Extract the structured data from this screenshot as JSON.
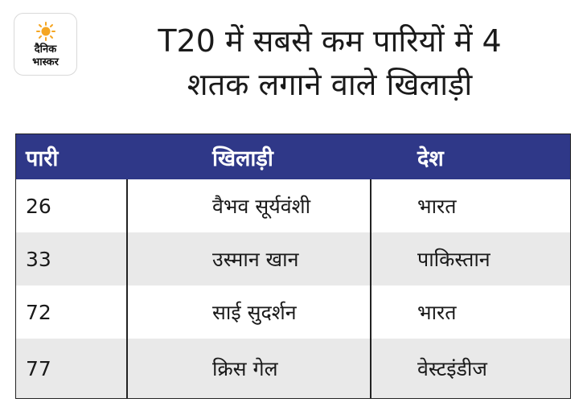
{
  "logo": {
    "line1": "दैनिक",
    "line2": "भास्कर"
  },
  "title": {
    "line1": "T20 में सबसे कम पारियों में 4",
    "line2": "शतक लगाने वाले खिलाड़ी"
  },
  "table": {
    "headers": [
      "पारी",
      "खिलाड़ी",
      "देश"
    ],
    "rows": [
      [
        "26",
        "वैभव सूर्यवंशी",
        "भारत"
      ],
      [
        "33",
        "उस्मान खान",
        "पाकिस्तान"
      ],
      [
        "72",
        "साई सुदर्शन",
        "भारत"
      ],
      [
        "77",
        "क्रिस गेल",
        "वेस्टइंडीज"
      ]
    ]
  },
  "colors": {
    "header_bg": "#2f3888",
    "alt_row_bg": "#e9e9e9",
    "logo_sun": "#f5a623"
  }
}
